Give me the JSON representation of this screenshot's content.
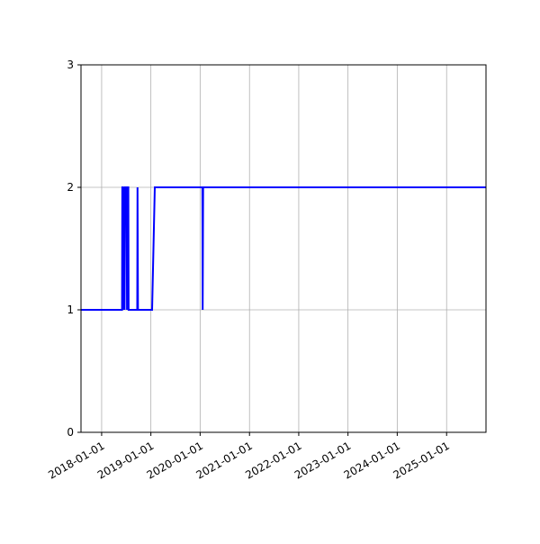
{
  "chart_data": {
    "type": "line",
    "title": "",
    "xlabel": "",
    "ylabel": "",
    "x_type": "date",
    "xlim": [
      "2017-08-01",
      "2025-10-20"
    ],
    "ylim": [
      0,
      3
    ],
    "grid": true,
    "x_ticks": [
      "2018-01-01",
      "2019-01-01",
      "2020-01-01",
      "2021-01-01",
      "2022-01-01",
      "2023-01-01",
      "2024-01-01",
      "2025-01-01"
    ],
    "y_ticks": [
      0,
      1,
      2,
      3
    ],
    "colors": {
      "line": "#0000ff",
      "grid": "#b0b0b0"
    },
    "series": [
      {
        "x": [
          "2017-08-01",
          "2018-06-01",
          "2018-06-03",
          "2018-06-10",
          "2018-06-12",
          "2018-06-15",
          "2018-06-20",
          "2018-06-24",
          "2018-07-05",
          "2018-07-08",
          "2018-07-10",
          "2018-07-18",
          "2018-07-20",
          "2018-09-22",
          "2018-09-24",
          "2018-09-27",
          "2019-01-10",
          "2019-01-30",
          "2020-01-18",
          "2020-01-20",
          "2020-01-23",
          "2025-10-20"
        ],
        "y": [
          1,
          1,
          2,
          2,
          1,
          2,
          1,
          2,
          2,
          1,
          2,
          2,
          1,
          1,
          2,
          1,
          1,
          2,
          2,
          1,
          2,
          2
        ]
      }
    ]
  }
}
